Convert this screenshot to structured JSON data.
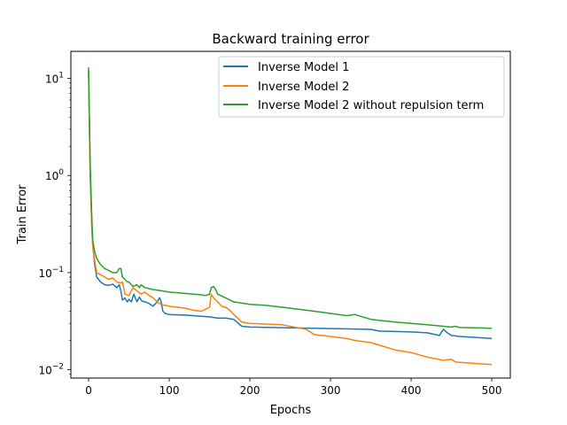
{
  "chart_data": {
    "type": "line",
    "title": "Backward training error",
    "xlabel": "Epochs",
    "ylabel": "Train Error",
    "xlim": [
      -22,
      523
    ],
    "ylim": [
      0.0082,
      19
    ],
    "yscale": "log",
    "xticks": [
      0,
      100,
      200,
      300,
      400,
      500
    ],
    "yticks": [
      {
        "value": 10,
        "base": "10",
        "exp": "1"
      },
      {
        "value": 1,
        "base": "10",
        "exp": "0"
      },
      {
        "value": 0.1,
        "base": "10",
        "exp": "−1"
      },
      {
        "value": 0.01,
        "base": "10",
        "exp": "−2"
      }
    ],
    "grid": false,
    "legend_position": "upper right",
    "series": [
      {
        "name": "Inverse Model 1",
        "color": "#1f77b4",
        "x": [
          0,
          1,
          2,
          3,
          4,
          5,
          7,
          10,
          15,
          20,
          25,
          30,
          35,
          38,
          40,
          42,
          45,
          48,
          50,
          53,
          56,
          60,
          63,
          66,
          70,
          75,
          80,
          85,
          88,
          90,
          92,
          95,
          100,
          120,
          150,
          160,
          170,
          180,
          190,
          200,
          250,
          300,
          350,
          360,
          400,
          420,
          430,
          435,
          440,
          445,
          450,
          460,
          480,
          500
        ],
        "y": [
          12,
          3.5,
          1.1,
          0.55,
          0.3,
          0.2,
          0.13,
          0.09,
          0.08,
          0.075,
          0.074,
          0.076,
          0.07,
          0.075,
          0.065,
          0.052,
          0.055,
          0.05,
          0.053,
          0.05,
          0.06,
          0.05,
          0.056,
          0.051,
          0.05,
          0.048,
          0.045,
          0.05,
          0.055,
          0.05,
          0.04,
          0.038,
          0.037,
          0.0365,
          0.035,
          0.034,
          0.034,
          0.033,
          0.028,
          0.0275,
          0.027,
          0.0265,
          0.026,
          0.025,
          0.0245,
          0.024,
          0.023,
          0.0225,
          0.026,
          0.024,
          0.0225,
          0.022,
          0.0215,
          0.021
        ]
      },
      {
        "name": "Inverse Model 2",
        "color": "#ff7f0e",
        "x": [
          0,
          1,
          2,
          3,
          4,
          5,
          7,
          10,
          15,
          20,
          25,
          30,
          35,
          40,
          42,
          45,
          50,
          55,
          60,
          65,
          70,
          75,
          80,
          85,
          90,
          100,
          110,
          120,
          130,
          140,
          150,
          152,
          155,
          160,
          165,
          170,
          175,
          180,
          185,
          190,
          200,
          220,
          240,
          260,
          270,
          280,
          300,
          320,
          330,
          350,
          360,
          380,
          400,
          420,
          440,
          450,
          455,
          460,
          480,
          500
        ],
        "y": [
          12,
          3.5,
          1.0,
          0.5,
          0.28,
          0.19,
          0.14,
          0.1,
          0.095,
          0.09,
          0.085,
          0.088,
          0.08,
          0.078,
          0.08,
          0.06,
          0.058,
          0.07,
          0.065,
          0.06,
          0.063,
          0.058,
          0.055,
          0.05,
          0.047,
          0.045,
          0.044,
          0.043,
          0.041,
          0.04,
          0.044,
          0.06,
          0.055,
          0.05,
          0.045,
          0.044,
          0.041,
          0.037,
          0.034,
          0.031,
          0.03,
          0.0295,
          0.029,
          0.027,
          0.026,
          0.023,
          0.022,
          0.021,
          0.02,
          0.019,
          0.018,
          0.016,
          0.015,
          0.0135,
          0.0125,
          0.0128,
          0.012,
          0.0119,
          0.0116,
          0.0113
        ]
      },
      {
        "name": "Inverse Model 2 without repulsion term",
        "color": "#2ca02c",
        "x": [
          0,
          1,
          2,
          3,
          4,
          5,
          7,
          10,
          15,
          20,
          25,
          30,
          35,
          38,
          40,
          42,
          45,
          48,
          50,
          55,
          60,
          63,
          65,
          70,
          80,
          90,
          100,
          120,
          140,
          145,
          150,
          152,
          155,
          158,
          160,
          170,
          180,
          200,
          220,
          240,
          250,
          260,
          280,
          300,
          320,
          330,
          350,
          380,
          400,
          420,
          440,
          450,
          455,
          460,
          480,
          500
        ],
        "y": [
          13,
          4.0,
          1.3,
          0.65,
          0.35,
          0.22,
          0.17,
          0.14,
          0.12,
          0.11,
          0.105,
          0.1,
          0.1,
          0.11,
          0.11,
          0.09,
          0.085,
          0.08,
          0.08,
          0.072,
          0.075,
          0.07,
          0.075,
          0.07,
          0.067,
          0.065,
          0.063,
          0.061,
          0.059,
          0.058,
          0.06,
          0.07,
          0.072,
          0.066,
          0.06,
          0.055,
          0.05,
          0.047,
          0.046,
          0.044,
          0.043,
          0.042,
          0.04,
          0.038,
          0.036,
          0.037,
          0.033,
          0.031,
          0.03,
          0.029,
          0.028,
          0.0275,
          0.028,
          0.0272,
          0.027,
          0.0267
        ]
      }
    ]
  }
}
